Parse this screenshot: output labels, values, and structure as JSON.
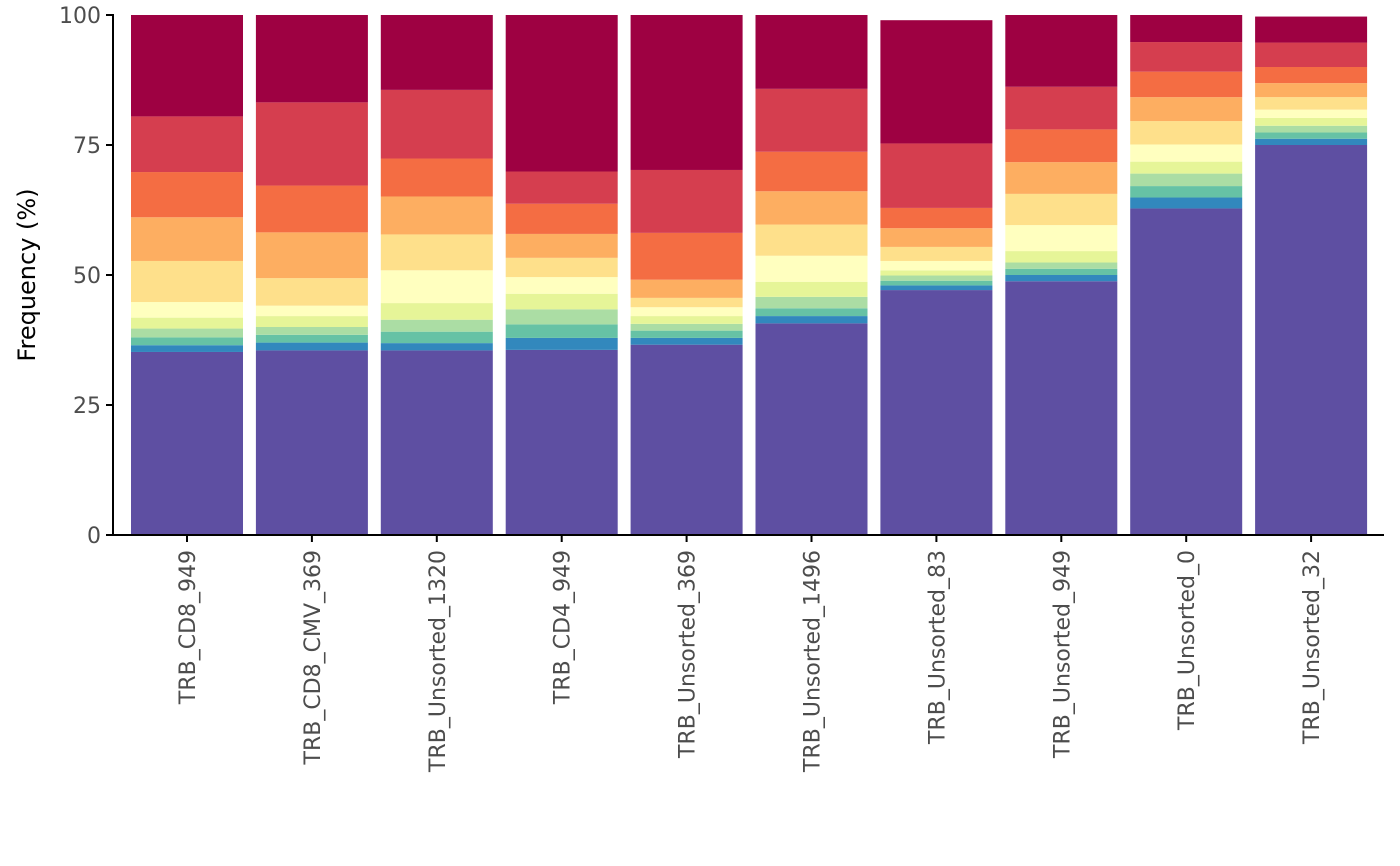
{
  "chart_data": {
    "type": "bar",
    "stacked": true,
    "title": "",
    "xlabel": "",
    "ylabel": "Frequency (%)",
    "ylim": [
      0,
      100
    ],
    "yticks": [
      0,
      25,
      50,
      75,
      100
    ],
    "grid": false,
    "legend": "none",
    "categories": [
      "TRB_CD8_949",
      "TRB_CD8_CMV_369",
      "TRB_Unsorted_1320",
      "TRB_CD4_949",
      "TRB_Unsorted_369",
      "TRB_Unsorted_1496",
      "TRB_Unsorted_83",
      "TRB_Unsorted_949",
      "TRB_Unsorted_0",
      "TRB_Unsorted_32"
    ],
    "series_colors": [
      "#5E4FA2",
      "#3288BD",
      "#66C2A5",
      "#ABDDA4",
      "#E6F598",
      "#FFFFBF",
      "#FEE08B",
      "#FDAE61",
      "#F46D43",
      "#D53E4F",
      "#9E0142"
    ],
    "series": [
      {
        "values": [
          35.2,
          35.5,
          35.5,
          35.6,
          36.6,
          40.7,
          47.1,
          48.8,
          62.8,
          75.0
        ]
      },
      {
        "values": [
          1.3,
          1.5,
          1.4,
          2.3,
          1.3,
          1.4,
          0.9,
          1.2,
          2.1,
          1.2
        ]
      },
      {
        "values": [
          1.5,
          1.5,
          2.2,
          2.6,
          1.4,
          1.5,
          0.9,
          1.2,
          2.2,
          1.2
        ]
      },
      {
        "values": [
          1.7,
          1.5,
          2.3,
          2.9,
          1.3,
          2.2,
          1.0,
          1.2,
          2.4,
          1.3
        ]
      },
      {
        "values": [
          2.1,
          2.1,
          3.2,
          3.0,
          1.5,
          2.9,
          1.0,
          2.2,
          2.3,
          1.5
        ]
      },
      {
        "values": [
          3.0,
          2.0,
          6.3,
          3.2,
          1.7,
          5.0,
          1.8,
          5.0,
          3.3,
          1.6
        ]
      },
      {
        "values": [
          7.9,
          5.3,
          6.9,
          3.7,
          1.8,
          6.0,
          2.7,
          6.0,
          4.5,
          2.4
        ]
      },
      {
        "values": [
          8.4,
          8.8,
          7.3,
          4.6,
          3.5,
          6.4,
          3.6,
          6.1,
          4.6,
          2.7
        ]
      },
      {
        "values": [
          8.7,
          9.0,
          7.3,
          5.8,
          9.0,
          7.6,
          3.9,
          6.3,
          4.9,
          3.1
        ]
      },
      {
        "values": [
          10.7,
          16.0,
          13.2,
          6.2,
          12.1,
          12.1,
          12.4,
          8.2,
          5.7,
          4.7
        ]
      },
      {
        "values": [
          19.5,
          16.8,
          14.4,
          30.1,
          29.8,
          14.2,
          23.7,
          13.8,
          5.7,
          5.0
        ]
      }
    ]
  }
}
